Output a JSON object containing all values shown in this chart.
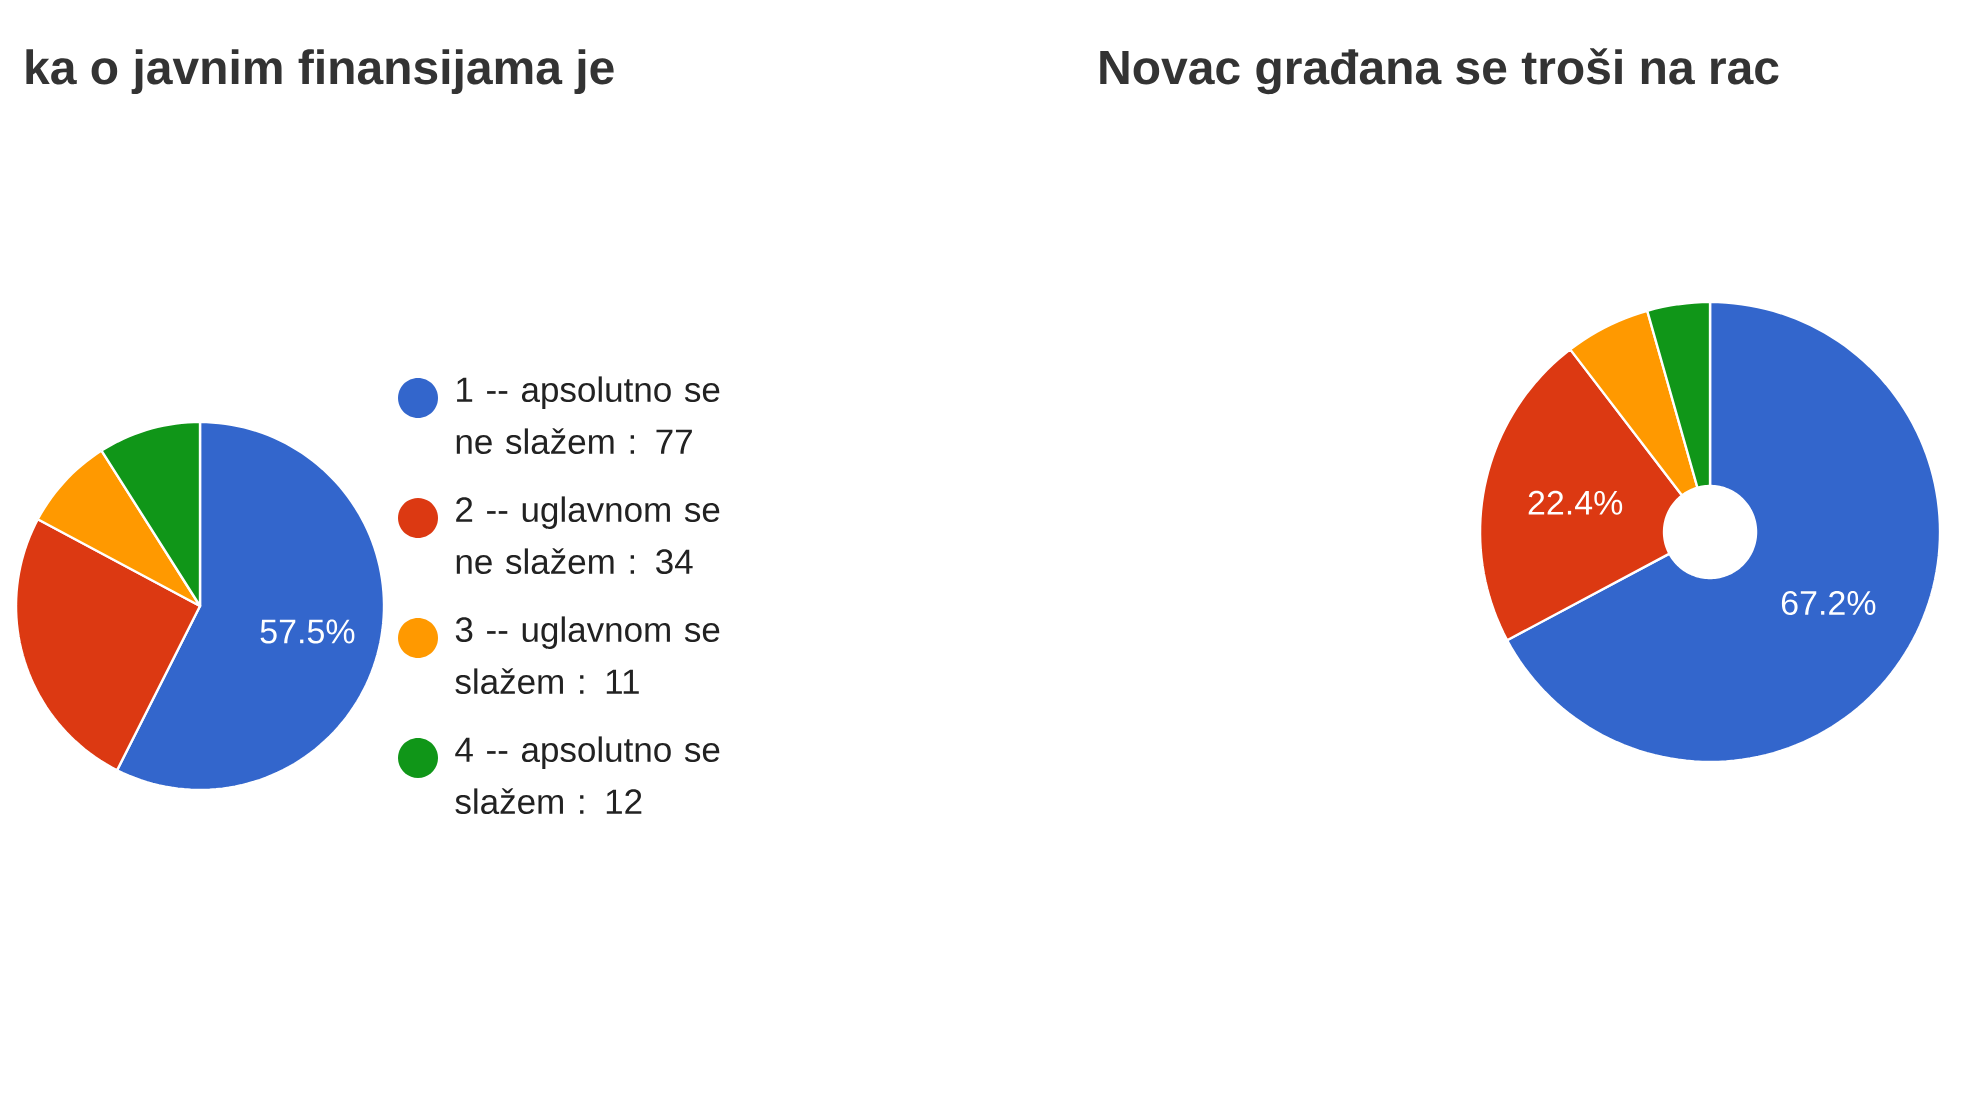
{
  "chart_data": [
    {
      "type": "pie",
      "title": "ka o javnim finansijama je",
      "categories": [
        "1 -- apsolutno se ne slažem : 77",
        "2 -- uglavnom se ne slažem : 34",
        "3 -- uglavnom se slažem : 11",
        "4 -- apsolutno se slažem : 12"
      ],
      "values": [
        57.5,
        25.4,
        8.2,
        9.0
      ],
      "colors": [
        "#3366cc",
        "#dc3912",
        "#ff9900",
        "#109618"
      ],
      "value_labels": [
        "57.5%",
        null,
        null,
        null
      ],
      "legend": "right"
    },
    {
      "type": "donut",
      "title": "Novac građana se troši na rac",
      "categories": [
        null,
        null,
        null,
        null
      ],
      "values": [
        67.2,
        22.4,
        6.0,
        4.4
      ],
      "colors": [
        "#3366cc",
        "#dc3912",
        "#ff9900",
        "#109618"
      ],
      "value_labels": [
        "67.2%",
        "22.4%",
        null,
        null
      ]
    }
  ]
}
